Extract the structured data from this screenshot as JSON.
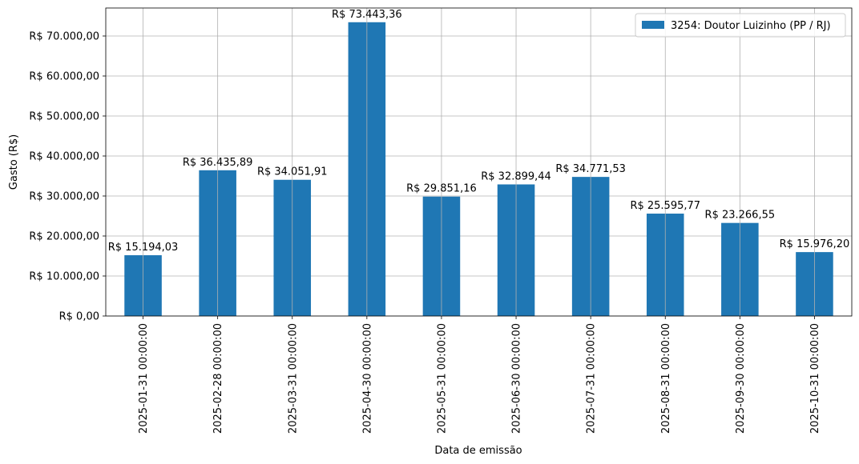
{
  "chart_data": {
    "type": "bar",
    "categories": [
      "2025-01-31 00:00:00",
      "2025-02-28 00:00:00",
      "2025-03-31 00:00:00",
      "2025-04-30 00:00:00",
      "2025-05-31 00:00:00",
      "2025-06-30 00:00:00",
      "2025-07-31 00:00:00",
      "2025-08-31 00:00:00",
      "2025-09-30 00:00:00",
      "2025-10-31 00:00:00"
    ],
    "series": [
      {
        "name": "3254: Doutor Luizinho (PP / RJ)",
        "color": "#1f77b4",
        "values": [
          15194.03,
          36435.89,
          34051.91,
          73443.36,
          29851.16,
          32899.44,
          34771.53,
          25595.77,
          23266.55,
          15976.2
        ],
        "value_labels": [
          "R$ 15.194,03",
          "R$ 36.435,89",
          "R$ 34.051,91",
          "R$ 73.443,36",
          "R$ 29.851,16",
          "R$ 32.899,44",
          "R$ 34.771,53",
          "R$ 25.595,77",
          "R$ 23.266,55",
          "R$ 15.976,20"
        ]
      }
    ],
    "title": "",
    "xlabel": "Data de emissão",
    "ylabel": "Gasto (R$)",
    "ylim": [
      0,
      77000
    ],
    "yticks": [
      0,
      10000,
      20000,
      30000,
      40000,
      50000,
      60000,
      70000
    ],
    "ytick_labels": [
      "R$ 0,00",
      "R$ 10.000,00",
      "R$ 20.000,00",
      "R$ 30.000,00",
      "R$ 40.000,00",
      "R$ 50.000,00",
      "R$ 60.000,00",
      "R$ 70.000,00"
    ],
    "grid": true,
    "legend_position": "top-right"
  }
}
